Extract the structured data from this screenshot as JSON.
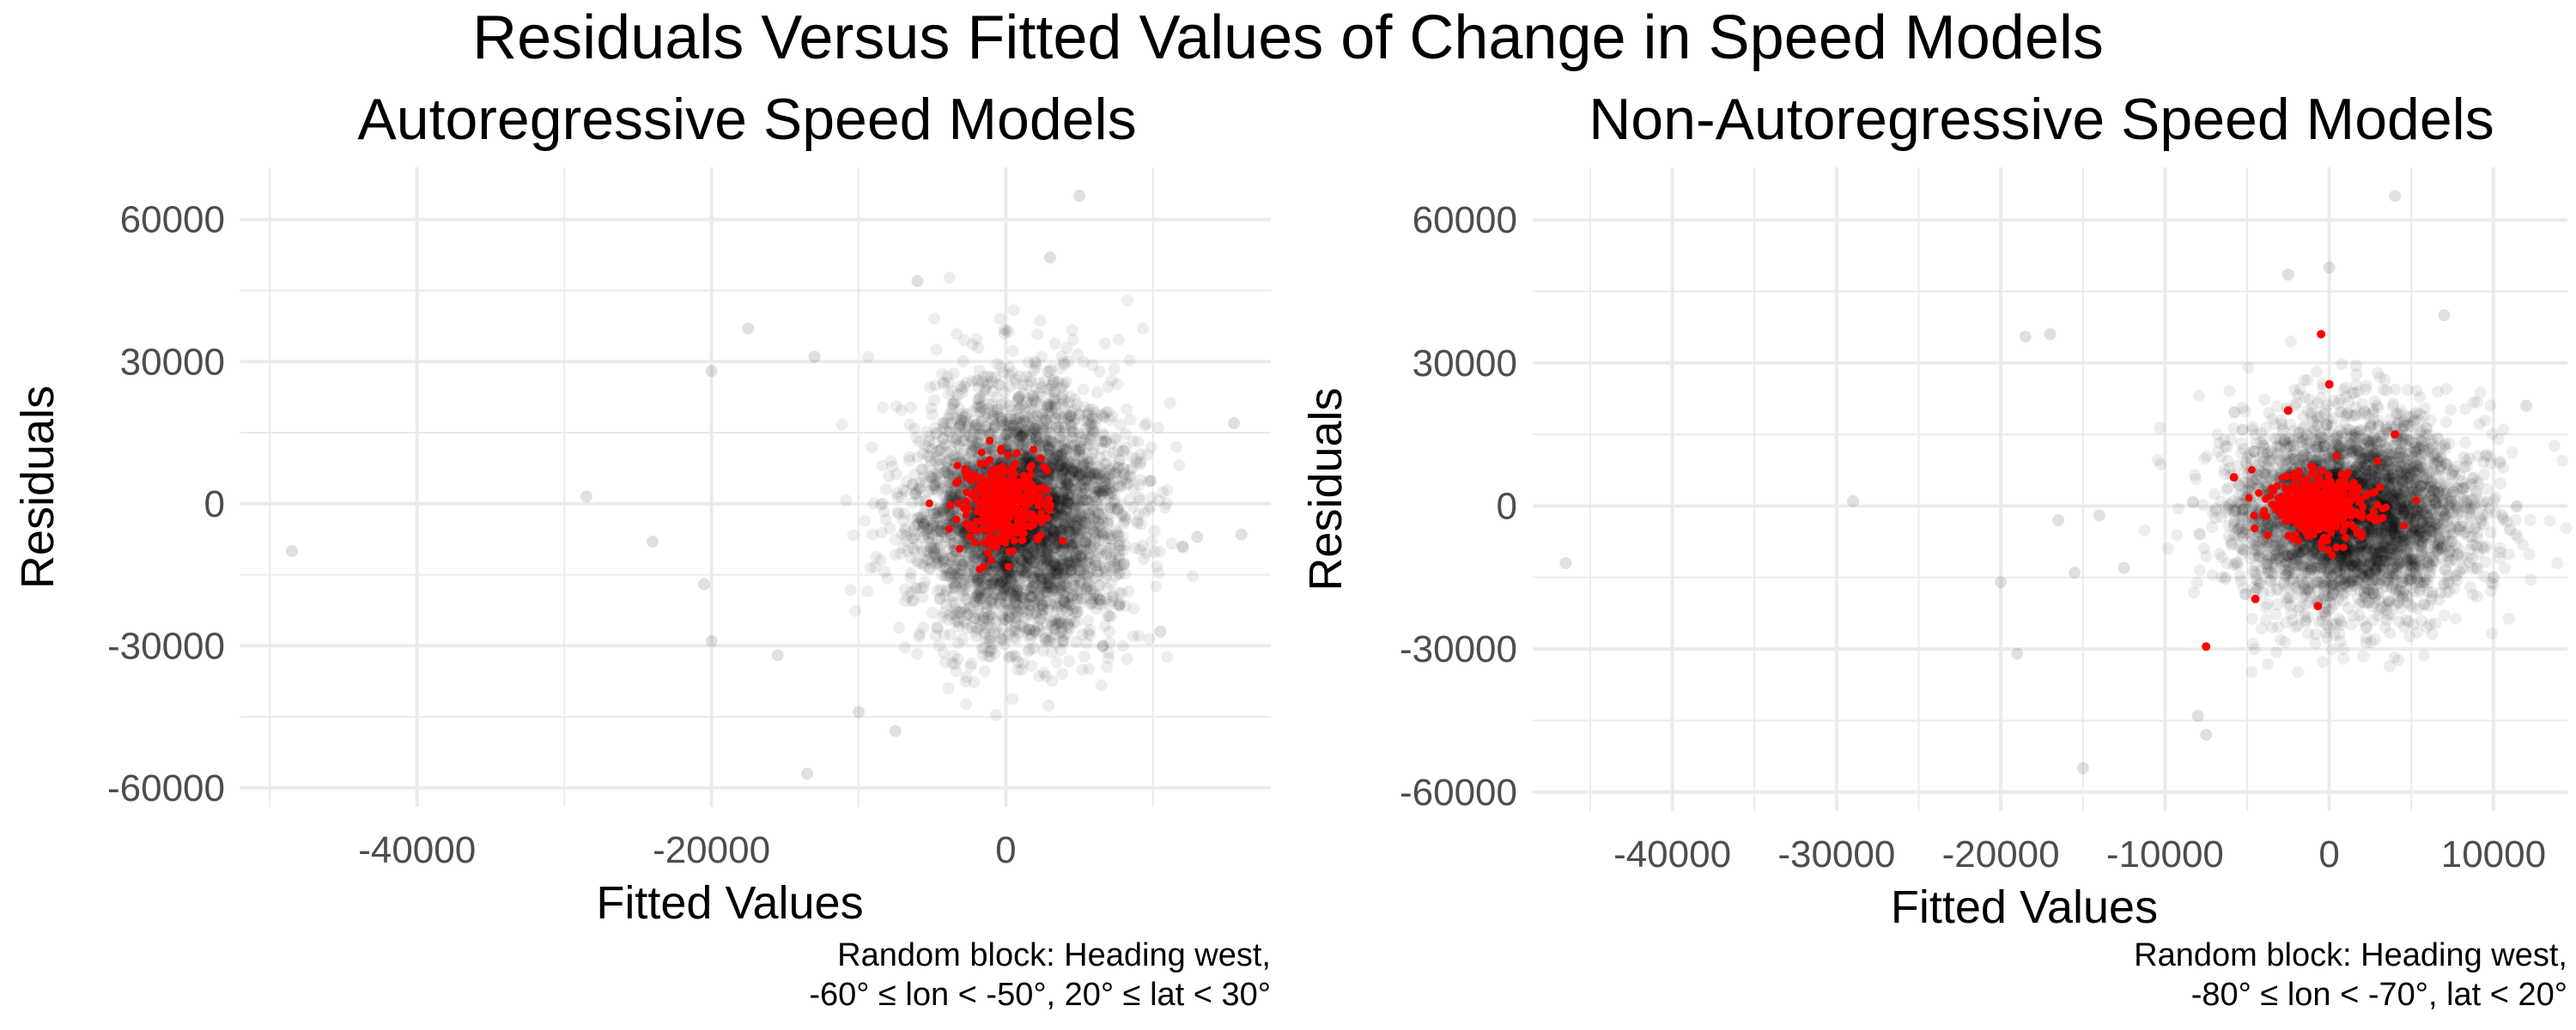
{
  "title": "Residuals Versus Fitted Values of Change in Speed Models",
  "colors": {
    "background": "#ffffff",
    "grid": "#ebebeb",
    "points": "#000000",
    "highlight": "#ff0000",
    "tick_text": "#4d4d4d"
  },
  "chart_data": [
    {
      "type": "scatter",
      "title": "Autoregressive Speed Models",
      "xlabel": "Fitted Values",
      "ylabel": "Residuals",
      "xlim": [
        -52000,
        18000
      ],
      "ylim": [
        -64000,
        71000
      ],
      "x_ticks": [
        -40000,
        -20000,
        0
      ],
      "y_ticks": [
        -60000,
        -30000,
        0,
        30000,
        60000
      ],
      "grid": true,
      "caption": [
        "Random block: Heading west,",
        "-60° ≤ lon < -50°, 20° ≤ lat < 30°"
      ],
      "series": [
        {
          "color": "#000000",
          "alpha": 0.07,
          "center": [
            1000,
            -2000
          ],
          "spread": [
            3500,
            13000
          ],
          "outliers": [
            [
              -48500,
              -10000
            ],
            [
              -28500,
              1500
            ],
            [
              -24000,
              -8000
            ],
            [
              -20500,
              -17000
            ],
            [
              -20000,
              -29000
            ],
            [
              -20000,
              28000
            ],
            [
              -17500,
              37000
            ],
            [
              -15500,
              -32000
            ],
            [
              -13500,
              -57000
            ],
            [
              -13000,
              31000
            ],
            [
              -10000,
              -44000
            ],
            [
              -7500,
              -48000
            ],
            [
              -6000,
              47000
            ],
            [
              3000,
              52000
            ],
            [
              5000,
              65000
            ],
            [
              10500,
              -27000
            ],
            [
              12000,
              -9000
            ],
            [
              13000,
              -7000
            ],
            [
              15500,
              17000
            ],
            [
              16000,
              -6500
            ]
          ]
        },
        {
          "color": "#ff0000",
          "alpha": 1.0,
          "center": [
            -200,
            0
          ],
          "spread": [
            1300,
            4600
          ]
        }
      ]
    },
    {
      "type": "scatter",
      "title": "Non-Autoregressive Speed Models",
      "xlabel": "Fitted Values",
      "ylabel": "Residuals",
      "xlim": [
        -48500,
        14500
      ],
      "ylim": [
        -64000,
        71000
      ],
      "x_ticks": [
        -40000,
        -30000,
        -20000,
        -10000,
        0,
        10000
      ],
      "y_ticks": [
        -60000,
        -30000,
        0,
        30000,
        60000
      ],
      "grid": true,
      "caption": [
        "Random block: Heading west,",
        "-80° ≤ lon < -70°, lat < 20°"
      ],
      "series": [
        {
          "color": "#000000",
          "alpha": 0.07,
          "center": [
            1500,
            -1500
          ],
          "spread": [
            3500,
            10000
          ],
          "outliers": [
            [
              -46500,
              -12000
            ],
            [
              -29000,
              1000
            ],
            [
              -20000,
              -16000
            ],
            [
              -19000,
              -31000
            ],
            [
              -18500,
              35500
            ],
            [
              -17000,
              36000
            ],
            [
              -16500,
              -3000
            ],
            [
              -15500,
              -14000
            ],
            [
              -15000,
              -55000
            ],
            [
              -14000,
              -2000
            ],
            [
              -12500,
              -13000
            ],
            [
              -8000,
              -44000
            ],
            [
              -7500,
              -48000
            ],
            [
              -2500,
              48500
            ],
            [
              0,
              50000
            ],
            [
              4000,
              65000
            ],
            [
              7000,
              40000
            ],
            [
              10000,
              -15000
            ],
            [
              11000,
              -5000
            ],
            [
              12000,
              21000
            ]
          ]
        },
        {
          "color": "#ff0000",
          "alpha": 1.0,
          "center": [
            -500,
            0
          ],
          "spread": [
            1600,
            3300
          ],
          "outliers": [
            [
              -7500,
              -29500
            ],
            [
              -5800,
              6000
            ],
            [
              -4500,
              -19500
            ],
            [
              -2500,
              20000
            ],
            [
              -700,
              -21000
            ],
            [
              -500,
              36000
            ],
            [
              0,
              25500
            ],
            [
              4000,
              15000
            ]
          ]
        }
      ]
    }
  ]
}
